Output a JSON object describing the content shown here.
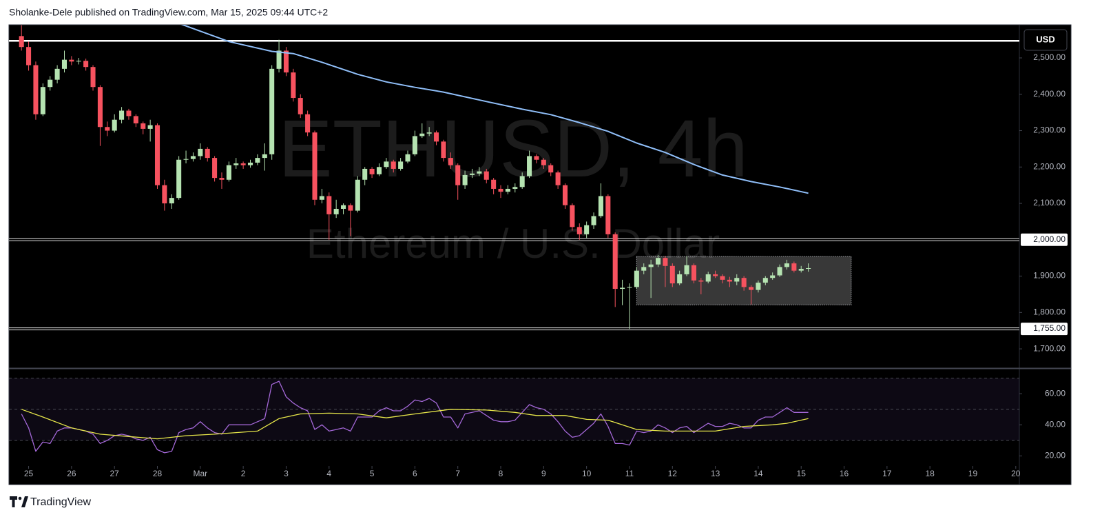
{
  "header": "Sholanke-Dele published on TradingView.com, Mar 15, 2025 09:44 UTC+2",
  "footer": "TradingView",
  "chart_data": {
    "type": "candlestick",
    "watermark_title": "ETHUSD, 4h",
    "watermark_subtitle": "Ethereum / U.S. Dollar",
    "currency": "USD",
    "up_color": "#b5e3b1",
    "down_color": "#f7525f",
    "x": [
      -4,
      0,
      4,
      8,
      12,
      16,
      20,
      24,
      28,
      32,
      36,
      40,
      44,
      48,
      52,
      56,
      60,
      64,
      68,
      72,
      76,
      80,
      84,
      88,
      92,
      96,
      100,
      104,
      108,
      112,
      116,
      120,
      124,
      128,
      132,
      136,
      140,
      144,
      148,
      152,
      156,
      160,
      164,
      168,
      172,
      176,
      180,
      184,
      188,
      192,
      196,
      200,
      204,
      208,
      212,
      216,
      220,
      224,
      228,
      232,
      236,
      240,
      244,
      248,
      252,
      256,
      260,
      264,
      268,
      272,
      276,
      280,
      284,
      288,
      292,
      296,
      300,
      304,
      308,
      312,
      316,
      320,
      324,
      328,
      332,
      336,
      340,
      344,
      348,
      352,
      356,
      360,
      364,
      368,
      372,
      376,
      380,
      384,
      388,
      392,
      396,
      400,
      404,
      408,
      412,
      416,
      420,
      424,
      428,
      432,
      436
    ],
    "open": [
      2560,
      2530,
      2480,
      2345,
      2420,
      2440,
      2470,
      2495,
      2490,
      2492,
      2475,
      2420,
      2310,
      2300,
      2330,
      2355,
      2340,
      2320,
      2305,
      2315,
      2150,
      2100,
      2115,
      2220,
      2222,
      2230,
      2250,
      2225,
      2170,
      2165,
      2205,
      2210,
      2205,
      2212,
      2225,
      2235,
      2470,
      2520,
      2460,
      2390,
      2345,
      2295,
      2110,
      2120,
      2070,
      2085,
      2095,
      2080,
      2165,
      2195,
      2180,
      2200,
      2215,
      2195,
      2215,
      2235,
      2285,
      2292,
      2295,
      2270,
      2225,
      2205,
      2150,
      2178,
      2182,
      2188,
      2165,
      2140,
      2132,
      2140,
      2145,
      2175,
      2230,
      2220,
      2205,
      2185,
      2150,
      2095,
      2035,
      2015,
      2040,
      2065,
      2120,
      2015,
      1865,
      1868,
      1870,
      1915,
      1925,
      1932,
      1950,
      1928,
      1880,
      1905,
      1930,
      1888,
      1885,
      1905,
      1900,
      1890,
      1885,
      1895,
      1870,
      1862,
      1882,
      1895,
      1902,
      1925,
      1935,
      1915,
      1920
    ],
    "high": [
      2590,
      2545,
      2490,
      2430,
      2450,
      2480,
      2520,
      2505,
      2500,
      2498,
      2480,
      2425,
      2325,
      2345,
      2365,
      2360,
      2345,
      2325,
      2330,
      2320,
      2165,
      2125,
      2230,
      2245,
      2240,
      2265,
      2255,
      2230,
      2185,
      2215,
      2225,
      2215,
      2220,
      2235,
      2265,
      2480,
      2550,
      2530,
      2470,
      2400,
      2355,
      2300,
      2140,
      2130,
      2110,
      2100,
      2100,
      2175,
      2200,
      2200,
      2210,
      2225,
      2220,
      2225,
      2245,
      2300,
      2320,
      2310,
      2300,
      2275,
      2240,
      2210,
      2190,
      2195,
      2200,
      2195,
      2170,
      2150,
      2150,
      2155,
      2185,
      2245,
      2235,
      2225,
      2210,
      2190,
      2155,
      2100,
      2045,
      2050,
      2075,
      2155,
      2125,
      2020,
      1890,
      1880,
      1925,
      1935,
      1945,
      1958,
      1955,
      1935,
      1915,
      1955,
      1935,
      1895,
      1912,
      1915,
      1905,
      1898,
      1905,
      1900,
      1875,
      1888,
      1900,
      1910,
      1932,
      1945,
      1940,
      1928,
      1935
    ],
    "low": [
      2520,
      2465,
      2330,
      2340,
      2410,
      2430,
      2460,
      2480,
      2482,
      2465,
      2410,
      2258,
      2285,
      2295,
      2320,
      2330,
      2310,
      2290,
      2270,
      2140,
      2080,
      2085,
      2110,
      2210,
      2215,
      2220,
      2215,
      2160,
      2140,
      2160,
      2195,
      2195,
      2198,
      2205,
      2190,
      2220,
      2460,
      2450,
      2380,
      2335,
      2285,
      2095,
      2100,
      2000,
      2060,
      2070,
      2010,
      2075,
      2150,
      2170,
      2175,
      2195,
      2185,
      2190,
      2210,
      2230,
      2280,
      2285,
      2260,
      2215,
      2195,
      2110,
      2140,
      2170,
      2175,
      2155,
      2125,
      2115,
      2125,
      2130,
      2140,
      2170,
      2210,
      2195,
      2175,
      2140,
      2085,
      2025,
      2000,
      2005,
      2030,
      2060,
      2005,
      1815,
      1820,
      1755,
      1865,
      1905,
      1840,
      1925,
      1870,
      1870,
      1875,
      1900,
      1880,
      1850,
      1880,
      1895,
      1880,
      1870,
      1875,
      1860,
      1822,
      1855,
      1875,
      1890,
      1898,
      1918,
      1910,
      1910,
      1912
    ],
    "close": [
      2530,
      2480,
      2345,
      2420,
      2440,
      2470,
      2495,
      2490,
      2492,
      2475,
      2420,
      2310,
      2300,
      2330,
      2355,
      2340,
      2320,
      2305,
      2315,
      2150,
      2100,
      2115,
      2220,
      2222,
      2230,
      2250,
      2225,
      2170,
      2165,
      2205,
      2210,
      2205,
      2212,
      2225,
      2235,
      2470,
      2520,
      2460,
      2390,
      2345,
      2295,
      2110,
      2120,
      2070,
      2085,
      2095,
      2080,
      2165,
      2195,
      2180,
      2200,
      2215,
      2195,
      2215,
      2235,
      2285,
      2292,
      2295,
      2270,
      2225,
      2205,
      2150,
      2178,
      2182,
      2188,
      2165,
      2140,
      2132,
      2140,
      2145,
      2175,
      2230,
      2220,
      2205,
      2185,
      2150,
      2095,
      2035,
      2015,
      2040,
      2065,
      2120,
      2015,
      1865,
      1868,
      1870,
      1915,
      1925,
      1932,
      1950,
      1928,
      1880,
      1905,
      1930,
      1888,
      1885,
      1905,
      1900,
      1890,
      1885,
      1895,
      1870,
      1862,
      1882,
      1895,
      1902,
      1925,
      1935,
      1915,
      1920,
      1922
    ],
    "ma": {
      "color": "#90bff9",
      "x": [
        84,
        112,
        136,
        148,
        164,
        184,
        200,
        216,
        232,
        256,
        276,
        292,
        308,
        324,
        340,
        356,
        372,
        388,
        404,
        420,
        436
      ],
      "values": [
        2595,
        2545,
        2518,
        2512,
        2488,
        2455,
        2434,
        2419,
        2406,
        2380,
        2359,
        2344,
        2322,
        2298,
        2266,
        2240,
        2207,
        2178,
        2160,
        2145,
        2128
      ]
    },
    "hlines": [
      {
        "value": 2547
      },
      {
        "value": 2000,
        "label": "2,000.00"
      },
      {
        "value": 1755,
        "label": "1,755.00"
      }
    ],
    "box": {
      "x": [
        340,
        460
      ],
      "y": [
        1821,
        1954
      ]
    },
    "xlim": [
      -11,
      554
    ],
    "ylim": [
      1649,
      2591
    ],
    "yticks": [
      {
        "value": 1700,
        "label": "1,700.00"
      },
      {
        "value": 1800,
        "label": "1,800.00"
      },
      {
        "value": 1900,
        "label": "1,900.00"
      },
      {
        "value": 2100,
        "label": "2,100.00"
      },
      {
        "value": 2200,
        "label": "2,200.00"
      },
      {
        "value": 2300,
        "label": "2,300.00"
      },
      {
        "value": 2400,
        "label": "2,400.00"
      },
      {
        "value": 2500,
        "label": "2,500.00"
      }
    ],
    "xticks": [
      {
        "value": 0,
        "label": "25"
      },
      {
        "value": 24,
        "label": "26"
      },
      {
        "value": 48,
        "label": "27"
      },
      {
        "value": 72,
        "label": "28"
      },
      {
        "value": 96,
        "label": "Mar"
      },
      {
        "value": 120,
        "label": "2"
      },
      {
        "value": 144,
        "label": "3"
      },
      {
        "value": 168,
        "label": "4"
      },
      {
        "value": 192,
        "label": "5"
      },
      {
        "value": 216,
        "label": "6"
      },
      {
        "value": 240,
        "label": "7"
      },
      {
        "value": 264,
        "label": "8"
      },
      {
        "value": 288,
        "label": "9"
      },
      {
        "value": 312,
        "label": "10"
      },
      {
        "value": 336,
        "label": "11"
      },
      {
        "value": 360,
        "label": "12"
      },
      {
        "value": 384,
        "label": "13"
      },
      {
        "value": 408,
        "label": "14"
      },
      {
        "value": 432,
        "label": "15"
      },
      {
        "value": 456,
        "label": "16"
      },
      {
        "value": 480,
        "label": "17"
      },
      {
        "value": 504,
        "label": "18"
      },
      {
        "value": 528,
        "label": "19"
      },
      {
        "value": 552,
        "label": "20"
      }
    ],
    "rsi": {
      "color": "#a468d8",
      "values": [
        47,
        38,
        23,
        29,
        28,
        36,
        38,
        38,
        37,
        36,
        34,
        28,
        30,
        33,
        34,
        33,
        31,
        30,
        32,
        24,
        22,
        23,
        35,
        37,
        38,
        42,
        38,
        35,
        34,
        40,
        40,
        40,
        40,
        42,
        44,
        66,
        68,
        58,
        54,
        51,
        49,
        37,
        40,
        36,
        37,
        38,
        36,
        45,
        45,
        45,
        49,
        51,
        49,
        49,
        52,
        56,
        55,
        57,
        54,
        45,
        45,
        38,
        47,
        48,
        49,
        46,
        43,
        42,
        42,
        43,
        48,
        53,
        51,
        50,
        47,
        42,
        36,
        32,
        33,
        37,
        41,
        47,
        39,
        28,
        28,
        27,
        36,
        35,
        36,
        40,
        38,
        35,
        38,
        39,
        35,
        38,
        41,
        39,
        39,
        41,
        40,
        38,
        38,
        43,
        45,
        45,
        48,
        51,
        48,
        48,
        48
      ],
      "ma": {
        "color": "#e8e84a",
        "x": [
          -4,
          8,
          24,
          40,
          56,
          72,
          88,
          104,
          128,
          140,
          152,
          168,
          184,
          200,
          216,
          236,
          256,
          272,
          284,
          300,
          312,
          324,
          340,
          356,
          372,
          384,
          400,
          416,
          424,
          436
        ],
        "values": [
          50,
          45,
          38,
          34,
          32.5,
          31,
          33,
          34,
          36,
          44,
          47,
          47.5,
          47,
          44.5,
          47,
          50,
          49.5,
          48,
          46,
          46,
          43.5,
          43,
          37,
          36,
          36,
          36,
          39,
          40,
          41,
          44
        ]
      },
      "levels": [
        70,
        50,
        30
      ],
      "ylim": [
        14,
        75.6
      ],
      "yticks": [
        {
          "value": 20,
          "label": "20.00"
        },
        {
          "value": 40,
          "label": "40.00"
        },
        {
          "value": 60,
          "label": "60.00"
        }
      ]
    }
  }
}
